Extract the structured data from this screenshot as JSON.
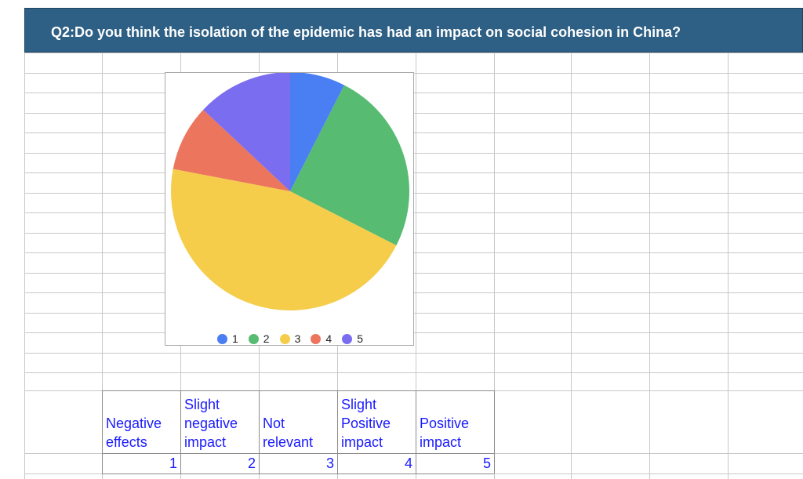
{
  "title": "Q2:Do you think the isolation of the epidemic has had an impact on social cohesion in China?",
  "chart_data": {
    "type": "pie",
    "categories": [
      "1",
      "2",
      "3",
      "4",
      "5"
    ],
    "values": [
      7.5,
      25,
      45.5,
      9,
      13
    ],
    "colors": [
      "#4a7ef3",
      "#57bb71",
      "#f5cd4b",
      "#ec765d",
      "#7a6df0"
    ],
    "legend_position": "bottom"
  },
  "scale_labels": [
    {
      "lines": [
        "Negative",
        "effects"
      ]
    },
    {
      "lines": [
        "Slight",
        "negative",
        "impact"
      ]
    },
    {
      "lines": [
        "Not",
        "relevant"
      ]
    },
    {
      "lines": [
        "Slight",
        "Positive",
        "impact"
      ]
    },
    {
      "lines": [
        "Positive",
        "impact"
      ]
    }
  ],
  "scale_values": [
    "1",
    "2",
    "3",
    "4",
    "5"
  ]
}
